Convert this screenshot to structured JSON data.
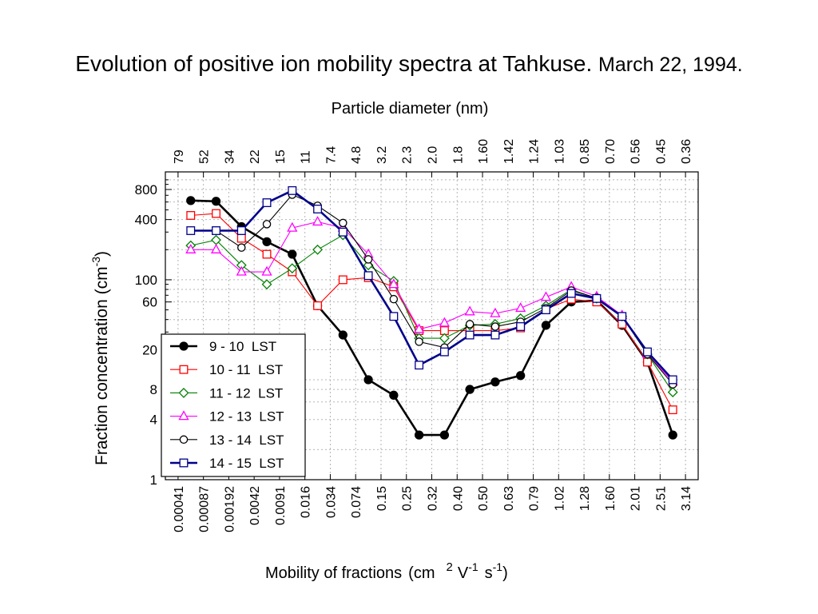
{
  "chart_data": {
    "type": "line",
    "title": "Evolution of positive ion mobility spectra at Tahkuse.",
    "subtitle": "March 22, 1994.",
    "top_axis_label": "Particle diameter  (nm)",
    "top_ticks": [
      "79",
      "52",
      "34",
      "22",
      "15",
      "11",
      "7.4",
      "4.8",
      "3.2",
      "2.3",
      "2.0",
      "1.8",
      "1.60",
      "1.42",
      "1.24",
      "1.03",
      "0.85",
      "0.70",
      "0.56",
      "0.45",
      "0.36"
    ],
    "x_ticks": [
      "0.00041",
      "0.00087",
      "0.00192",
      "0.0042",
      "0.0091",
      "0.016",
      "0.034",
      "0.074",
      "0.15",
      "0.25",
      "0.32",
      "0.40",
      "0.50",
      "0.63",
      "0.79",
      "1.02",
      "1.28",
      "1.60",
      "2.01",
      "2.51",
      "3.14"
    ],
    "xlabel": "Mobility of fractions",
    "xlabel_units_prefix": "(cm",
    "xlabel_units_sq": "2",
    "xlabel_units_v": "V",
    "xlabel_units_neg1": "-1",
    "xlabel_units_s": "s",
    "xlabel_units_close": ")",
    "ylabel": "Fraction concentration  (cm",
    "ylabel_exp": "-3",
    "ylabel_close": ")",
    "y_ticks": [
      "1",
      "4",
      "8",
      "20",
      "60",
      "100",
      "400",
      "800"
    ],
    "y_tick_values": [
      1,
      4,
      8,
      20,
      60,
      100,
      400,
      800
    ],
    "yscale": "log",
    "ylim": [
      1,
      1200
    ],
    "grid": true,
    "legend_position": "bottom-left",
    "series": [
      {
        "name": "9 - 10  LST",
        "color": "#000000",
        "marker": "filled-circle",
        "bold": true,
        "values": [
          620,
          610,
          340,
          240,
          180,
          55,
          28,
          10,
          7,
          2.8,
          2.8,
          8,
          9.5,
          11,
          35,
          60,
          62,
          35,
          15,
          2.8
        ]
      },
      {
        "name": "10 - 11  LST",
        "color": "#ff0000",
        "marker": "square",
        "bold": false,
        "values": [
          440,
          460,
          260,
          180,
          120,
          55,
          100,
          105,
          85,
          31,
          31,
          31,
          31,
          33,
          51,
          64,
          60,
          36,
          15,
          5
        ]
      },
      {
        "name": "11 - 12  LST",
        "color": "#008000",
        "marker": "diamond",
        "bold": false,
        "values": [
          220,
          250,
          140,
          90,
          130,
          200,
          280,
          140,
          97,
          26,
          26,
          35,
          36,
          41,
          55,
          80,
          65,
          43,
          18,
          7.5
        ]
      },
      {
        "name": "12 - 13  LST",
        "color": "#ff00ff",
        "marker": "triangle",
        "bold": false,
        "values": [
          200,
          200,
          120,
          120,
          330,
          380,
          330,
          180,
          90,
          32,
          37,
          48,
          46,
          52,
          67,
          85,
          68,
          44,
          18,
          9.5
        ]
      },
      {
        "name": "13 - 14  LST",
        "color": "#000000",
        "marker": "open-circle",
        "bold": false,
        "values": [
          310,
          310,
          210,
          360,
          710,
          550,
          370,
          160,
          64,
          24,
          21,
          36,
          34,
          38,
          52,
          78,
          66,
          43,
          18,
          9
        ]
      },
      {
        "name": "14 - 15  LST",
        "color": "#00008b",
        "marker": "square",
        "bold": true,
        "values": [
          310,
          310,
          310,
          590,
          780,
          510,
          300,
          110,
          43,
          14,
          19,
          28,
          28,
          34,
          50,
          73,
          65,
          43,
          19,
          10
        ]
      }
    ]
  }
}
